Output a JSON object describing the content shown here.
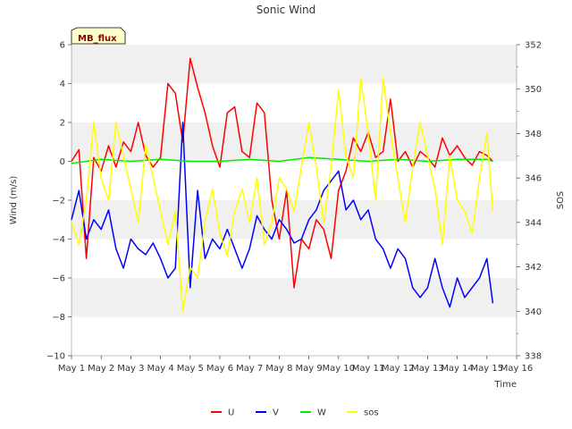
{
  "chart_data": {
    "type": "line",
    "title": "Sonic Wind",
    "site_label": "MB_flux",
    "xlabel": "Time",
    "ylabel": "Wind (m/s)",
    "y2label": "SOS",
    "xlim": [
      1,
      16
    ],
    "ylim": [
      -10,
      6
    ],
    "y2lim": [
      338,
      352
    ],
    "x_ticks": [
      1,
      2,
      3,
      4,
      5,
      6,
      7,
      8,
      9,
      10,
      11,
      12,
      13,
      14,
      15,
      16
    ],
    "x_tick_labels": [
      "May 1",
      "May 2",
      "May 3",
      "May 4",
      "May 5",
      "May 6",
      "May 7",
      "May 8",
      "May 9",
      "May 10",
      "May 11",
      "May 12",
      "May 13",
      "May 14",
      "May 15",
      "May 16"
    ],
    "y_ticks": [
      6,
      4,
      2,
      0,
      -2,
      -4,
      -6,
      -8,
      -10
    ],
    "y_tick_labels": [
      "6",
      "4",
      "2",
      "0",
      "−2",
      "−4",
      "−6",
      "−8",
      "−10"
    ],
    "y2_ticks": [
      352,
      350,
      348,
      346,
      344,
      342,
      340,
      338
    ],
    "y2_tick_labels": [
      "352",
      "350",
      "348",
      "346",
      "344",
      "342",
      "340",
      "338"
    ],
    "legend_position": "bottom-center",
    "grid": "alternating horizontal bands",
    "series": [
      {
        "name": "U",
        "color": "#ff0000",
        "axis": "left",
        "x": [
          1.0,
          1.25,
          1.5,
          1.75,
          2.0,
          2.25,
          2.5,
          2.75,
          3.0,
          3.25,
          3.5,
          3.75,
          4.0,
          4.25,
          4.5,
          4.75,
          5.0,
          5.25,
          5.5,
          5.75,
          6.0,
          6.25,
          6.5,
          6.75,
          7.0,
          7.25,
          7.5,
          7.75,
          8.0,
          8.25,
          8.5,
          8.75,
          9.0,
          9.25,
          9.5,
          9.75,
          10.0,
          10.25,
          10.5,
          10.75,
          11.0,
          11.25,
          11.5,
          11.75,
          12.0,
          12.25,
          12.5,
          12.75,
          13.0,
          13.25,
          13.5,
          13.75,
          14.0,
          14.25,
          14.5,
          14.75,
          15.0,
          15.2
        ],
        "values": [
          0.0,
          0.6,
          -5.0,
          0.2,
          -0.5,
          0.8,
          -0.3,
          1.0,
          0.5,
          2.0,
          0.3,
          -0.3,
          0.2,
          4.0,
          3.5,
          1.0,
          5.3,
          3.8,
          2.5,
          0.8,
          -0.3,
          2.5,
          2.8,
          0.5,
          0.2,
          3.0,
          2.5,
          -2.0,
          -4.0,
          -1.5,
          -6.5,
          -4.0,
          -4.5,
          -3.0,
          -3.5,
          -5.0,
          -1.5,
          -0.5,
          1.2,
          0.5,
          1.5,
          0.2,
          0.5,
          3.2,
          0.0,
          0.5,
          -0.3,
          0.5,
          0.2,
          -0.3,
          1.2,
          0.3,
          0.8,
          0.2,
          -0.2,
          0.5,
          0.3,
          0.0
        ]
      },
      {
        "name": "V",
        "color": "#0000ff",
        "axis": "left",
        "x": [
          1.0,
          1.25,
          1.5,
          1.75,
          2.0,
          2.25,
          2.5,
          2.75,
          3.0,
          3.25,
          3.5,
          3.75,
          4.0,
          4.25,
          4.5,
          4.75,
          5.0,
          5.25,
          5.5,
          5.75,
          6.0,
          6.25,
          6.5,
          6.75,
          7.0,
          7.25,
          7.5,
          7.75,
          8.0,
          8.25,
          8.5,
          8.75,
          9.0,
          9.25,
          9.5,
          9.75,
          10.0,
          10.25,
          10.5,
          10.75,
          11.0,
          11.25,
          11.5,
          11.75,
          12.0,
          12.25,
          12.5,
          12.75,
          13.0,
          13.25,
          13.5,
          13.75,
          14.0,
          14.25,
          14.5,
          14.75,
          15.0,
          15.2
        ],
        "values": [
          -3.0,
          -1.5,
          -4.0,
          -3.0,
          -3.5,
          -2.5,
          -4.5,
          -5.5,
          -4.0,
          -4.5,
          -4.8,
          -4.2,
          -5.0,
          -6.0,
          -5.5,
          2.0,
          -6.5,
          -1.5,
          -5.0,
          -4.0,
          -4.5,
          -3.5,
          -4.5,
          -5.5,
          -4.5,
          -2.8,
          -3.5,
          -4.0,
          -3.0,
          -3.5,
          -4.2,
          -4.0,
          -3.0,
          -2.5,
          -1.5,
          -1.0,
          -0.5,
          -2.5,
          -2.0,
          -3.0,
          -2.5,
          -4.0,
          -4.5,
          -5.5,
          -4.5,
          -5.0,
          -6.5,
          -7.0,
          -6.5,
          -5.0,
          -6.5,
          -7.5,
          -6.0,
          -7.0,
          -6.5,
          -6.0,
          -5.0,
          -7.3
        ]
      },
      {
        "name": "W",
        "color": "#00ee00",
        "axis": "left",
        "x": [
          1.0,
          2.0,
          3.0,
          4.0,
          5.0,
          6.0,
          7.0,
          8.0,
          9.0,
          10.0,
          11.0,
          12.0,
          13.0,
          14.0,
          15.0,
          15.2
        ],
        "values": [
          -0.1,
          0.1,
          0.0,
          0.1,
          0.0,
          0.0,
          0.1,
          0.0,
          0.2,
          0.1,
          0.0,
          0.1,
          0.0,
          0.1,
          0.1,
          0.0
        ]
      },
      {
        "name": "sos",
        "color": "#ffff00",
        "axis": "right",
        "x": [
          1.0,
          1.25,
          1.5,
          1.75,
          2.0,
          2.25,
          2.5,
          2.75,
          3.0,
          3.25,
          3.5,
          3.75,
          4.0,
          4.25,
          4.5,
          4.75,
          5.0,
          5.25,
          5.5,
          5.75,
          6.0,
          6.25,
          6.5,
          6.75,
          7.0,
          7.25,
          7.5,
          7.75,
          8.0,
          8.25,
          8.5,
          8.75,
          9.0,
          9.25,
          9.5,
          9.75,
          10.0,
          10.25,
          10.5,
          10.75,
          11.0,
          11.25,
          11.5,
          11.75,
          12.0,
          12.25,
          12.5,
          12.75,
          13.0,
          13.25,
          13.5,
          13.75,
          14.0,
          14.25,
          14.5,
          14.75,
          15.0,
          15.2
        ],
        "values": [
          344.0,
          343.0,
          345.0,
          348.5,
          346.0,
          345.0,
          348.5,
          347.0,
          345.5,
          344.0,
          347.5,
          346.0,
          344.5,
          343.0,
          344.5,
          340.0,
          342.0,
          341.5,
          344.0,
          345.5,
          343.5,
          342.5,
          344.5,
          345.5,
          344.0,
          346.0,
          343.0,
          344.0,
          346.0,
          345.5,
          344.5,
          346.5,
          348.5,
          346.5,
          344.0,
          346.5,
          350.0,
          347.0,
          346.0,
          350.5,
          348.0,
          345.0,
          350.5,
          348.0,
          346.0,
          344.0,
          346.5,
          348.5,
          347.0,
          345.5,
          343.0,
          347.0,
          345.0,
          344.5,
          343.5,
          346.0,
          348.0,
          344.5
        ]
      }
    ]
  }
}
